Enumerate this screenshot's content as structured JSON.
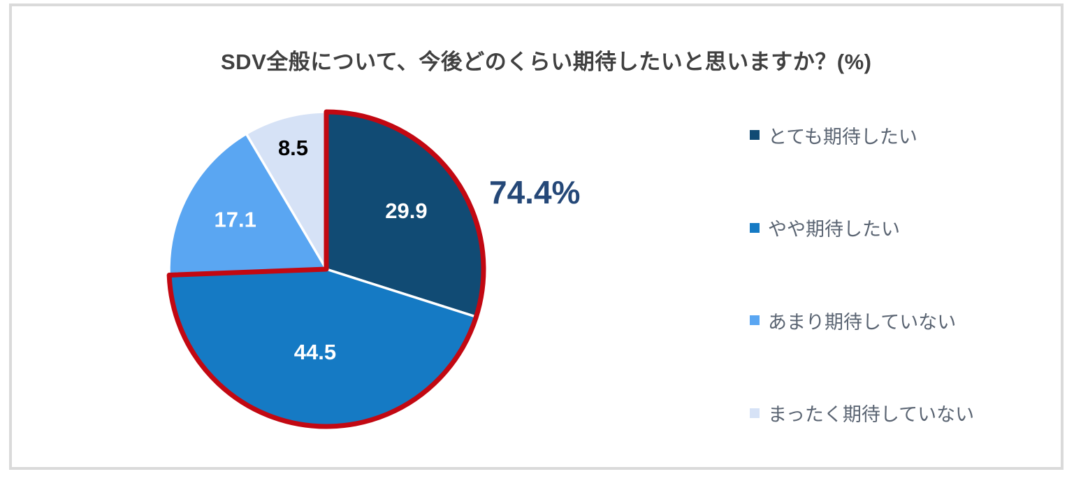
{
  "title": {
    "text": "SDV全般について、今後どのくらい期待したいと思いますか？(%)",
    "color": "#404040"
  },
  "highlight": {
    "label": "74.4%",
    "label_color": "#254878",
    "outline_color": "#C20812",
    "slice_indices": [
      0,
      1
    ]
  },
  "frame": {
    "border_color": "#DADADA"
  },
  "chart_data": {
    "type": "pie",
    "title": "SDV全般について、今後どのくらい期待したいと思いますか？(%)",
    "unit": "%",
    "start_angle_deg": 0,
    "direction": "clockwise",
    "legend_position": "right",
    "data_labels": "inside",
    "slices": [
      {
        "label": "とても期待したい",
        "value": 29.9,
        "color": "#114B74",
        "label_color": "#FFFFFF"
      },
      {
        "label": "やや期待したい",
        "value": 44.5,
        "color": "#157AC4",
        "label_color": "#FFFFFF"
      },
      {
        "label": "あまり期待していない",
        "value": 17.1,
        "color": "#5AA6F2",
        "label_color": "#FFFFFF"
      },
      {
        "label": "まったく期待していない",
        "value": 8.5,
        "color": "#D6E2F6",
        "label_color": "#000000"
      }
    ],
    "annotations": [
      {
        "text": "74.4%",
        "meaning": "とても期待したい + やや期待したい combined share, outlined in dark red"
      }
    ]
  }
}
